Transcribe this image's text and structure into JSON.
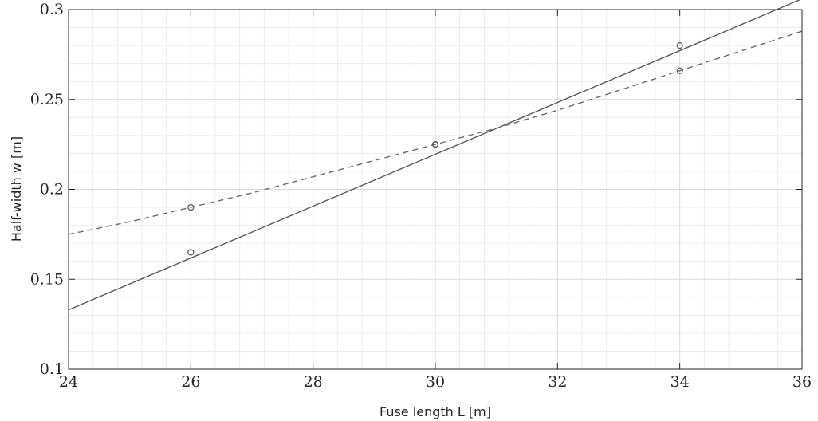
{
  "chart_data": {
    "type": "line",
    "title": "",
    "xlabel": "Fuse length L [m]",
    "ylabel": "Half-width w [m]",
    "xlim": [
      24,
      36
    ],
    "ylim": [
      0.1,
      0.3
    ],
    "x_ticks": [
      24,
      26,
      28,
      30,
      32,
      34,
      36
    ],
    "x_tick_labels": [
      "24",
      "26",
      "28",
      "30",
      "32",
      "34",
      "36"
    ],
    "y_ticks": [
      0.1,
      0.15,
      0.2,
      0.25,
      0.3
    ],
    "y_tick_labels": [
      "0.1",
      "0.15",
      "0.2",
      "0.25",
      "0.3"
    ],
    "grid": true,
    "minor_grid": true,
    "legend": "none",
    "series": [
      {
        "style": "solid",
        "color": "#595959",
        "x": [
          24,
          36
        ],
        "y": [
          0.133,
          0.306
        ],
        "markers": {
          "x": [
            26,
            30,
            34
          ],
          "y": [
            0.165,
            0.225,
            0.28
          ]
        }
      },
      {
        "style": "dashed",
        "color": "#6a6a6a",
        "x": [
          24,
          25,
          26,
          27,
          28,
          29,
          30,
          31,
          32,
          33,
          34,
          35,
          36
        ],
        "y": [
          0.175,
          0.182,
          0.19,
          0.198,
          0.207,
          0.216,
          0.225,
          0.234,
          0.244,
          0.255,
          0.266,
          0.277,
          0.288
        ],
        "markers": {
          "x": [
            26,
            30,
            34
          ],
          "y": [
            0.19,
            0.225,
            0.266
          ]
        }
      }
    ]
  }
}
